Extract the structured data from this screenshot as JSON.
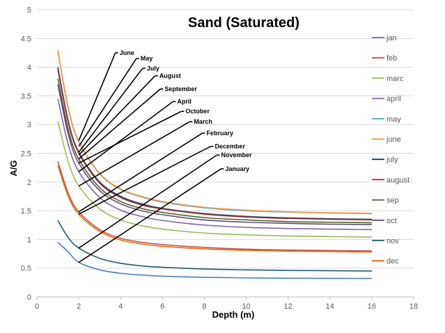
{
  "chart_data": {
    "type": "line",
    "title": "Sand (Saturated)",
    "xlabel": "Depth (m)",
    "ylabel": "A/G",
    "xlim": [
      0,
      18
    ],
    "ylim": [
      0,
      5
    ],
    "xticks": [
      0,
      2,
      4,
      6,
      8,
      10,
      12,
      14,
      16,
      18
    ],
    "yticks": [
      0,
      0.5,
      1,
      1.5,
      2,
      2.5,
      3,
      3.5,
      4,
      4.5,
      5
    ],
    "xtick_labels": [
      "0",
      "2",
      "4",
      "6",
      "8",
      "10",
      "12",
      "14",
      "16",
      "18"
    ],
    "ytick_labels": [
      "0",
      "0.5",
      "1",
      "1.5",
      "2",
      "2.5",
      "3",
      "3.5",
      "4",
      "4.5",
      "5"
    ],
    "grid": "horizontal",
    "legend_position": "right",
    "x": [
      1,
      1.5,
      2,
      3,
      4,
      5,
      6,
      8,
      10,
      12,
      14,
      16
    ],
    "series": [
      {
        "name": "jan",
        "color": "#4a7ebb",
        "values": [
          0.95,
          0.78,
          0.6,
          0.47,
          0.41,
          0.38,
          0.36,
          0.34,
          0.33,
          0.325,
          0.322,
          0.32
        ]
      },
      {
        "name": "feb",
        "color": "#c0504d",
        "values": [
          2.36,
          1.8,
          1.48,
          1.17,
          1.02,
          0.95,
          0.91,
          0.86,
          0.83,
          0.815,
          0.807,
          0.8
        ]
      },
      {
        "name": "marc",
        "color": "#9bbb59",
        "values": [
          3.06,
          2.35,
          1.93,
          1.53,
          1.34,
          1.24,
          1.18,
          1.11,
          1.08,
          1.06,
          1.05,
          1.04
        ]
      },
      {
        "name": "april",
        "color": "#8064a2",
        "values": [
          3.45,
          2.65,
          2.18,
          1.73,
          1.51,
          1.4,
          1.33,
          1.25,
          1.21,
          1.19,
          1.18,
          1.17
        ]
      },
      {
        "name": "may",
        "color": "#4bacc6",
        "values": [
          4.28,
          3.27,
          2.7,
          2.14,
          1.87,
          1.74,
          1.65,
          1.55,
          1.5,
          1.475,
          1.46,
          1.45
        ]
      },
      {
        "name": "june",
        "color": "#f79646",
        "values": [
          4.3,
          3.29,
          2.71,
          2.15,
          1.88,
          1.75,
          1.66,
          1.56,
          1.51,
          1.48,
          1.465,
          1.455
        ]
      },
      {
        "name": "july",
        "color": "#1f3864",
        "values": [
          4.0,
          3.06,
          2.52,
          2.0,
          1.75,
          1.62,
          1.54,
          1.45,
          1.4,
          1.375,
          1.36,
          1.35
        ]
      },
      {
        "name": "august",
        "color": "#943634",
        "values": [
          3.96,
          3.03,
          2.5,
          1.98,
          1.73,
          1.6,
          1.53,
          1.44,
          1.39,
          1.365,
          1.35,
          1.34
        ]
      },
      {
        "name": "sep",
        "color": "#4f6228",
        "values": [
          3.8,
          2.91,
          2.4,
          1.9,
          1.66,
          1.54,
          1.47,
          1.38,
          1.34,
          1.31,
          1.3,
          1.29
        ]
      },
      {
        "name": "oct",
        "color": "#5f497a",
        "values": [
          3.7,
          2.83,
          2.33,
          1.85,
          1.62,
          1.5,
          1.43,
          1.34,
          1.3,
          1.28,
          1.265,
          1.26
        ]
      },
      {
        "name": "nov",
        "color": "#205867",
        "values": [
          1.33,
          1.03,
          0.85,
          0.67,
          0.585,
          0.54,
          0.515,
          0.485,
          0.47,
          0.46,
          0.455,
          0.45
        ]
      },
      {
        "name": "dec",
        "color": "#e46c0a",
        "values": [
          2.29,
          1.75,
          1.44,
          1.14,
          0.99,
          0.92,
          0.88,
          0.835,
          0.81,
          0.795,
          0.787,
          0.78
        ]
      }
    ],
    "annotations": [
      {
        "label": "June",
        "from": [
          2.0,
          2.72
        ],
        "to": [
          3.75,
          4.25
        ]
      },
      {
        "label": "May",
        "from": [
          2.0,
          2.62
        ],
        "to": [
          4.75,
          4.15
        ]
      },
      {
        "label": "July",
        "from": [
          2.0,
          2.52
        ],
        "to": [
          5.05,
          3.98
        ]
      },
      {
        "label": "August",
        "from": [
          2.0,
          2.47
        ],
        "to": [
          5.65,
          3.85
        ]
      },
      {
        "label": "September",
        "from": [
          2.0,
          2.4
        ],
        "to": [
          5.9,
          3.62
        ]
      },
      {
        "label": "April",
        "from": [
          2.0,
          2.18
        ],
        "to": [
          6.5,
          3.4
        ]
      },
      {
        "label": "October",
        "from": [
          2.0,
          2.33
        ],
        "to": [
          6.9,
          3.23
        ]
      },
      {
        "label": "March",
        "from": [
          2.0,
          1.93
        ],
        "to": [
          7.3,
          3.05
        ]
      },
      {
        "label": "February",
        "from": [
          2.0,
          1.48
        ],
        "to": [
          7.9,
          2.85
        ]
      },
      {
        "label": "December",
        "from": [
          2.0,
          1.44
        ],
        "to": [
          8.3,
          2.62
        ]
      },
      {
        "label": "November",
        "from": [
          2.0,
          0.85
        ],
        "to": [
          8.6,
          2.47
        ]
      },
      {
        "label": "January",
        "from": [
          2.0,
          0.6
        ],
        "to": [
          8.8,
          2.23
        ]
      }
    ]
  }
}
